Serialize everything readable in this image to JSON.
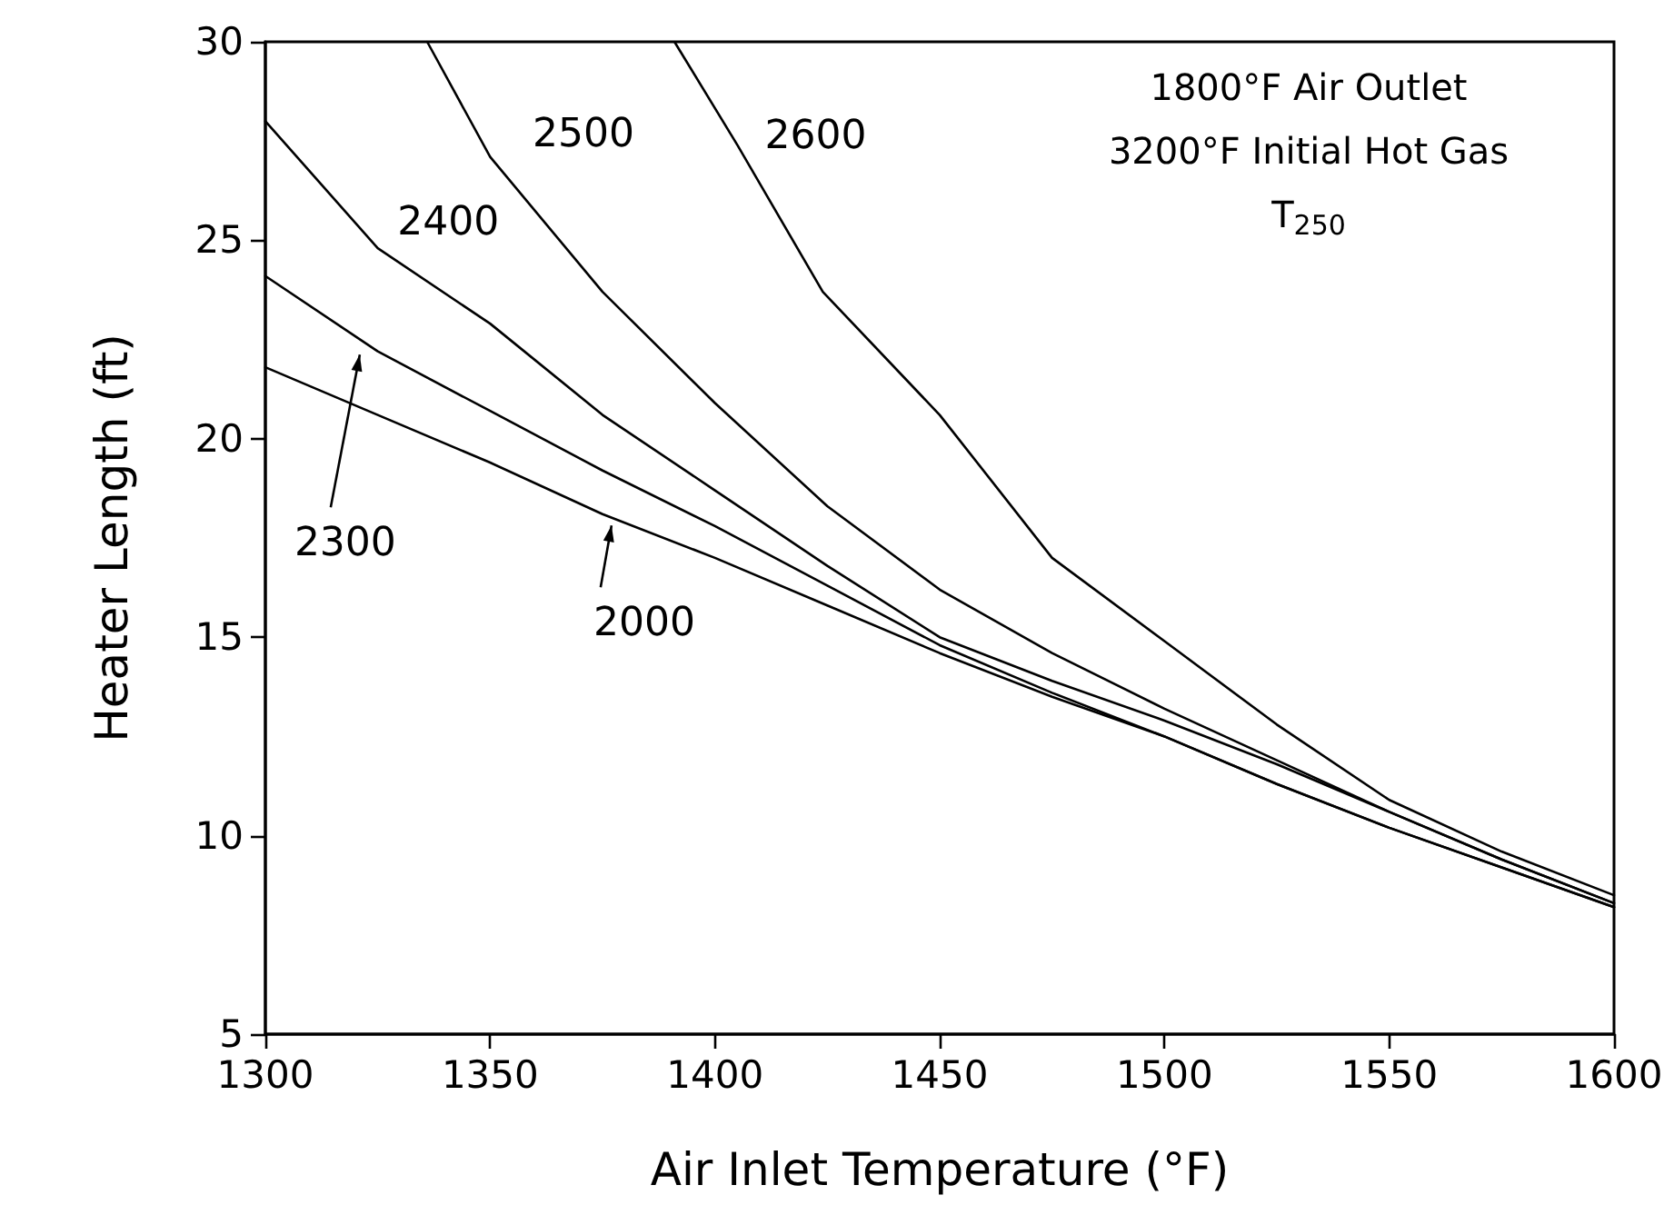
{
  "chart_data": {
    "type": "line",
    "xlabel": "Air Inlet Temperature (°F)",
    "ylabel": "Heater Length (ft)",
    "xlim": [
      1300,
      1600
    ],
    "xticks": [
      1300,
      1350,
      1400,
      1450,
      1500,
      1550,
      1600
    ],
    "ylim": [
      5,
      30
    ],
    "yticks": [
      5,
      10,
      15,
      20,
      25,
      30
    ],
    "grid": false,
    "series": [
      {
        "color": "#000000",
        "x": [
          1300,
          1325,
          1350,
          1375,
          1400,
          1425,
          1450,
          1475,
          1500,
          1525,
          1550,
          1575,
          1600
        ],
        "values": [
          21.8,
          20.6,
          19.4,
          18.1,
          17.0,
          15.8,
          14.6,
          13.5,
          12.5,
          11.3,
          10.2,
          9.2,
          8.2
        ]
      },
      {
        "color": "#000000",
        "x": [
          1300,
          1325,
          1350,
          1375,
          1400,
          1425,
          1450,
          1475,
          1500,
          1525,
          1550,
          1575,
          1600
        ],
        "values": [
          24.1,
          22.2,
          20.7,
          19.2,
          17.8,
          16.3,
          14.8,
          13.6,
          12.5,
          11.3,
          10.2,
          9.2,
          8.2
        ]
      },
      {
        "color": "#000000",
        "x": [
          1300,
          1325,
          1350,
          1375,
          1400,
          1425,
          1450,
          1475,
          1500,
          1525,
          1550,
          1575,
          1600
        ],
        "values": [
          28.0,
          24.8,
          22.9,
          20.6,
          18.7,
          16.8,
          15.0,
          13.9,
          12.9,
          11.8,
          10.6,
          9.4,
          8.3
        ]
      },
      {
        "color": "#000000",
        "x": [
          1336,
          1350,
          1375,
          1400,
          1425,
          1450,
          1475,
          1500,
          1525,
          1550,
          1575,
          1600
        ],
        "values": [
          30,
          27.1,
          23.7,
          20.9,
          18.3,
          16.2,
          14.6,
          13.2,
          11.9,
          10.6,
          9.4,
          8.3
        ]
      },
      {
        "color": "#000000",
        "x": [
          1391,
          1405,
          1424,
          1450,
          1475,
          1500,
          1525,
          1550,
          1575,
          1600
        ],
        "values": [
          30,
          27.4,
          23.7,
          20.6,
          17.0,
          14.9,
          12.8,
          10.9,
          9.6,
          8.5
        ]
      }
    ],
    "annotations": [
      {
        "text": "2500",
        "x": 1355,
        "y": 26.2
      },
      {
        "text": "2600",
        "x": 1405,
        "y": 27.4
      },
      {
        "text": "2400",
        "x": 1324.5,
        "y": 24.8
      },
      {
        "text": "2300",
        "x": 1321,
        "y": 22.3
      },
      {
        "text": "2000",
        "x": 1377,
        "y": 18.0
      },
      "1800°F Air Outlet",
      "3200°F Initial Hot Gas",
      "T$_{250}$"
    ]
  }
}
